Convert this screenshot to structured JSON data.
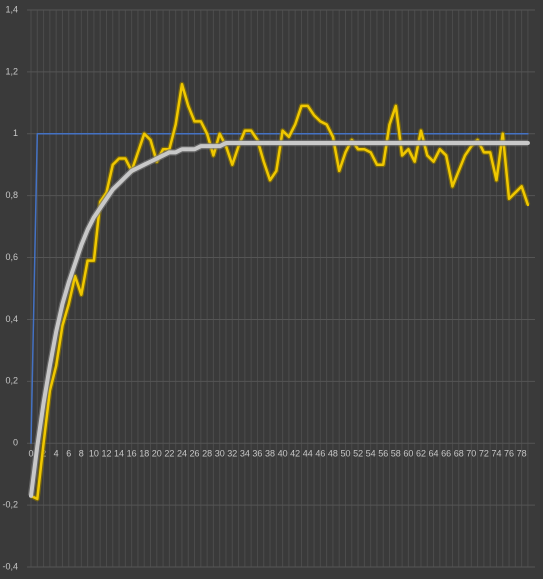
{
  "chart_data": {
    "type": "line",
    "categories": [
      "0",
      null,
      "2",
      null,
      "4",
      null,
      "6",
      null,
      "8",
      null,
      "10",
      null,
      "12",
      null,
      "14",
      null,
      "16",
      null,
      "18",
      null,
      "20",
      null,
      "22",
      null,
      "24",
      null,
      "26",
      null,
      "28",
      null,
      "30",
      null,
      "32",
      null,
      "34",
      null,
      "36",
      null,
      "38",
      null,
      "40",
      null,
      "42",
      null,
      "44",
      null,
      "46",
      null,
      "48",
      null,
      "50",
      null,
      "52",
      null,
      "54",
      null,
      "56",
      null,
      "58",
      null,
      "60",
      null,
      "62",
      null,
      "64",
      null,
      "66",
      null,
      "68",
      null,
      "70",
      null,
      "72",
      null,
      "74",
      null,
      "76",
      null,
      "78",
      null
    ],
    "ylim": [
      -0.4,
      1.4
    ],
    "yticks": [
      {
        "value": -0.4,
        "label": "-0,4"
      },
      {
        "value": -0.2,
        "label": "-0,2"
      },
      0,
      {
        "value": 0.2,
        "label": "0,2"
      },
      {
        "value": 0.4,
        "label": "0,4"
      },
      {
        "value": 0.6,
        "label": "0,6"
      },
      {
        "value": 0.8,
        "label": "0,8"
      },
      1,
      {
        "value": 1.2,
        "label": "1,2"
      },
      {
        "value": 1.4,
        "label": "1,4"
      }
    ],
    "grid": true,
    "series": [
      {
        "color": "#4472c4",
        "values": [
          0,
          1,
          1,
          1,
          1,
          1,
          1,
          1,
          1,
          1,
          1,
          1,
          1,
          1,
          1,
          1,
          1,
          1,
          1,
          1,
          1,
          1,
          1,
          1,
          1,
          1,
          1,
          1,
          1,
          1,
          1,
          1,
          1,
          1,
          1,
          1,
          1,
          1,
          1,
          1,
          1,
          1,
          1,
          1,
          1,
          1,
          1,
          1,
          1,
          1,
          1,
          1,
          1,
          1,
          1,
          1,
          1,
          1,
          1,
          1,
          1,
          1,
          1,
          1,
          1,
          1,
          1,
          1,
          1,
          1,
          1,
          1,
          1,
          1,
          1,
          1,
          1,
          1,
          1,
          1
        ]
      },
      {
        "color": "#f0c800",
        "values": [
          -0.17,
          -0.18,
          0.0,
          0.17,
          0.25,
          0.38,
          0.45,
          0.54,
          0.48,
          0.59,
          0.59,
          0.78,
          0.81,
          0.9,
          0.92,
          0.92,
          0.88,
          0.94,
          1.0,
          0.98,
          0.91,
          0.95,
          0.95,
          1.03,
          1.16,
          1.09,
          1.04,
          1.04,
          1.0,
          0.93,
          1.0,
          0.96,
          0.9,
          0.96,
          1.01,
          1.01,
          0.98,
          0.91,
          0.85,
          0.88,
          1.01,
          0.99,
          1.03,
          1.09,
          1.09,
          1.06,
          1.04,
          1.03,
          0.99,
          0.88,
          0.94,
          0.98,
          0.95,
          0.95,
          0.94,
          0.9,
          0.9,
          1.03,
          1.09,
          0.93,
          0.95,
          0.91,
          1.01,
          0.93,
          0.91,
          0.95,
          0.93,
          0.83,
          0.88,
          0.93,
          0.96,
          0.98,
          0.94,
          0.94,
          0.85,
          1.0,
          0.79,
          0.81,
          0.83,
          0.77
        ]
      },
      {
        "color": "#c8c8c8",
        "values": [
          -0.17,
          -0.01,
          0.13,
          0.25,
          0.36,
          0.45,
          0.52,
          0.58,
          0.64,
          0.69,
          0.73,
          0.76,
          0.79,
          0.82,
          0.84,
          0.86,
          0.88,
          0.89,
          0.9,
          0.91,
          0.92,
          0.93,
          0.94,
          0.94,
          0.95,
          0.95,
          0.95,
          0.96,
          0.96,
          0.96,
          0.96,
          0.97,
          0.97,
          0.97,
          0.97,
          0.97,
          0.97,
          0.97,
          0.97,
          0.97,
          0.97,
          0.97,
          0.97,
          0.97,
          0.97,
          0.97,
          0.97,
          0.97,
          0.97,
          0.97,
          0.97,
          0.97,
          0.97,
          0.97,
          0.97,
          0.97,
          0.97,
          0.97,
          0.97,
          0.97,
          0.97,
          0.97,
          0.97,
          0.97,
          0.97,
          0.97,
          0.97,
          0.97,
          0.97,
          0.97,
          0.97,
          0.97,
          0.97,
          0.97,
          0.97,
          0.97,
          0.97,
          0.97,
          0.97,
          0.97
        ]
      }
    ]
  }
}
